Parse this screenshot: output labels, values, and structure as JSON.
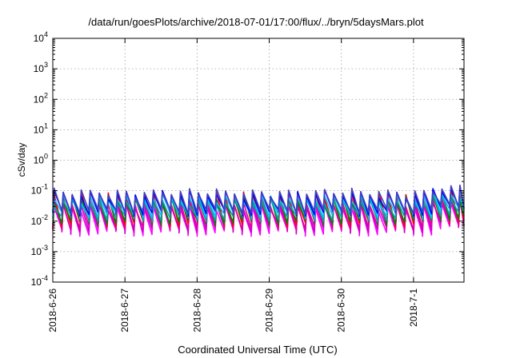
{
  "chart_data": {
    "type": "line",
    "title": "/data/run/goesPlots/archive/2018-07-01/17:00/flux/../bryn/5daysMars.plot",
    "xlabel": "Coordinated Universal Time (UTC)",
    "ylabel": "cSv/day",
    "yscale": "log",
    "ylim": [
      0.0001,
      10000
    ],
    "xlim": [
      "2018-6-26",
      "2018-7-1 17:00"
    ],
    "x_ticks": [
      "2018-6-26",
      "2018-6-27",
      "2018-6-28",
      "2018-6-29",
      "2018-6-30",
      "2018-7-1"
    ],
    "y_ticks": [
      {
        "base": "10",
        "exp": "-4"
      },
      {
        "base": "10",
        "exp": "-3"
      },
      {
        "base": "10",
        "exp": "-2"
      },
      {
        "base": "10",
        "exp": "-1"
      },
      {
        "base": "10",
        "exp": "0"
      },
      {
        "base": "10",
        "exp": "1"
      },
      {
        "base": "10",
        "exp": "2"
      },
      {
        "base": "10",
        "exp": "3"
      },
      {
        "base": "10",
        "exp": "4"
      }
    ],
    "grid": true,
    "pattern": {
      "shape": "sawtooth",
      "cycles_per_day": 8,
      "note_period": "rapid rise then decay"
    },
    "series": [
      {
        "color": "#ff00ff",
        "peak": 0.03,
        "trough": 0.004
      },
      {
        "color": "#cc00cc",
        "peak": 0.035,
        "trough": 0.005
      },
      {
        "color": "#e000a0",
        "peak": 0.04,
        "trough": 0.006
      },
      {
        "color": "#ff0000",
        "peak": 0.07,
        "trough": 0.008
      },
      {
        "color": "#008000",
        "peak": 0.05,
        "trough": 0.009
      },
      {
        "color": "#00aaaa",
        "peak": 0.045,
        "trough": 0.012
      },
      {
        "color": "#00c8ff",
        "peak": 0.06,
        "trough": 0.015
      },
      {
        "color": "#0000ff",
        "peak": 0.08,
        "trough": 0.018
      },
      {
        "color": "#4040c0",
        "peak": 0.09,
        "trough": 0.02
      }
    ]
  }
}
